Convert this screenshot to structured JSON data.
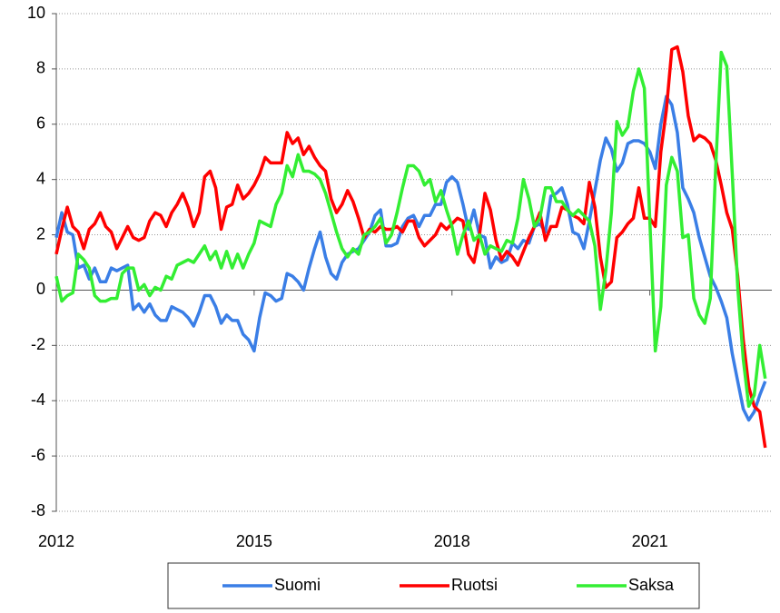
{
  "chart_data": {
    "type": "line",
    "x": [
      2012,
      2012.083,
      2012.167,
      2012.25,
      2012.333,
      2012.417,
      2012.5,
      2012.583,
      2012.667,
      2012.75,
      2012.833,
      2012.917,
      2013,
      2013.083,
      2013.167,
      2013.25,
      2013.333,
      2013.417,
      2013.5,
      2013.583,
      2013.667,
      2013.75,
      2013.833,
      2013.917,
      2014,
      2014.083,
      2014.167,
      2014.25,
      2014.333,
      2014.417,
      2014.5,
      2014.583,
      2014.667,
      2014.75,
      2014.833,
      2014.917,
      2015,
      2015.083,
      2015.167,
      2015.25,
      2015.333,
      2015.417,
      2015.5,
      2015.583,
      2015.667,
      2015.75,
      2015.833,
      2015.917,
      2016,
      2016.083,
      2016.167,
      2016.25,
      2016.333,
      2016.417,
      2016.5,
      2016.583,
      2016.667,
      2016.75,
      2016.833,
      2016.917,
      2017,
      2017.083,
      2017.167,
      2017.25,
      2017.333,
      2017.417,
      2017.5,
      2017.583,
      2017.667,
      2017.75,
      2017.833,
      2017.917,
      2018,
      2018.083,
      2018.167,
      2018.25,
      2018.333,
      2018.417,
      2018.5,
      2018.583,
      2018.667,
      2018.75,
      2018.833,
      2018.917,
      2019,
      2019.083,
      2019.167,
      2019.25,
      2019.333,
      2019.417,
      2019.5,
      2019.583,
      2019.667,
      2019.75,
      2019.833,
      2019.917,
      2020,
      2020.083,
      2020.167,
      2020.25,
      2020.333,
      2020.417,
      2020.5,
      2020.583,
      2020.667,
      2020.75,
      2020.833,
      2020.917,
      2021,
      2021.083,
      2021.167,
      2021.25,
      2021.333,
      2021.417,
      2021.5,
      2021.583,
      2021.667,
      2021.75,
      2021.833,
      2021.917,
      2022,
      2022.083,
      2022.167,
      2022.25,
      2022.333,
      2022.417,
      2022.5,
      2022.583,
      2022.667,
      2022.75
    ],
    "series": [
      {
        "name": "Suomi",
        "color": "#3a7ee6",
        "values": [
          1.9,
          2.8,
          2.1,
          2.0,
          0.8,
          0.9,
          0.4,
          0.8,
          0.3,
          0.3,
          0.8,
          0.7,
          0.8,
          0.9,
          -0.7,
          -0.5,
          -0.8,
          -0.5,
          -0.9,
          -1.1,
          -1.1,
          -0.6,
          -0.7,
          -0.8,
          -1.0,
          -1.3,
          -0.8,
          -0.2,
          -0.2,
          -0.6,
          -1.2,
          -0.9,
          -1.1,
          -1.1,
          -1.6,
          -1.8,
          -2.2,
          -1.0,
          -0.1,
          -0.2,
          -0.4,
          -0.3,
          0.6,
          0.5,
          0.3,
          0.0,
          0.8,
          1.5,
          2.1,
          1.2,
          0.6,
          0.4,
          1.0,
          1.3,
          1.4,
          1.5,
          1.8,
          2.1,
          2.7,
          2.9,
          1.6,
          1.6,
          1.7,
          2.3,
          2.6,
          2.7,
          2.3,
          2.7,
          2.7,
          3.1,
          3.1,
          3.9,
          4.1,
          3.9,
          3.1,
          2.2,
          2.9,
          2.0,
          1.9,
          0.8,
          1.2,
          1.0,
          1.1,
          1.7,
          1.5,
          1.8,
          1.7,
          2.3,
          2.4,
          2.1,
          3.4,
          3.5,
          3.7,
          3.1,
          2.1,
          2.0,
          1.5,
          2.5,
          3.6,
          4.7,
          5.5,
          5.1,
          4.3,
          4.6,
          5.3,
          5.4,
          5.4,
          5.3,
          5.0,
          4.4,
          6.0,
          7.0,
          6.7,
          5.7,
          3.7,
          3.3,
          2.8,
          1.9,
          1.2,
          0.5,
          0.1,
          -0.4,
          -1.0,
          -2.3,
          -3.3,
          -4.3,
          -4.7,
          -4.4,
          -3.8,
          -3.3
        ]
      },
      {
        "name": "Ruotsi",
        "color": "#ff0000",
        "values": [
          1.3,
          2.2,
          3.0,
          2.3,
          2.1,
          1.5,
          2.2,
          2.4,
          2.8,
          2.3,
          2.1,
          1.5,
          1.9,
          2.3,
          1.9,
          1.8,
          1.9,
          2.5,
          2.8,
          2.7,
          2.3,
          2.8,
          3.1,
          3.5,
          3.0,
          2.3,
          2.8,
          4.1,
          4.3,
          3.7,
          2.2,
          3.0,
          3.1,
          3.8,
          3.3,
          3.5,
          3.8,
          4.2,
          4.8,
          4.6,
          4.6,
          4.6,
          5.7,
          5.3,
          5.5,
          4.9,
          5.2,
          4.8,
          4.5,
          4.3,
          3.3,
          2.8,
          3.1,
          3.6,
          3.2,
          2.6,
          1.9,
          2.2,
          2.1,
          2.3,
          2.2,
          2.2,
          2.3,
          2.1,
          2.5,
          2.5,
          1.9,
          1.6,
          1.8,
          2.0,
          2.4,
          2.2,
          2.4,
          2.6,
          2.5,
          1.3,
          1.0,
          2.0,
          3.5,
          2.9,
          1.8,
          1.1,
          1.4,
          1.2,
          0.9,
          1.4,
          1.9,
          2.3,
          2.8,
          1.8,
          2.3,
          2.3,
          3.0,
          2.9,
          2.7,
          2.6,
          2.4,
          3.9,
          3.0,
          1.2,
          0.1,
          0.3,
          1.9,
          2.1,
          2.4,
          2.6,
          3.7,
          2.6,
          2.6,
          2.3,
          5.0,
          6.5,
          8.7,
          8.8,
          7.9,
          6.3,
          5.4,
          5.6,
          5.5,
          5.3,
          4.7,
          3.8,
          2.8,
          2.2,
          0.5,
          -1.8,
          -3.5,
          -4.2,
          -4.4,
          -5.7
        ]
      },
      {
        "name": "Saksa",
        "color": "#33ee33",
        "values": [
          0.5,
          -0.4,
          -0.2,
          -0.1,
          1.3,
          1.1,
          0.8,
          -0.2,
          -0.4,
          -0.4,
          -0.3,
          -0.3,
          0.6,
          0.8,
          0.8,
          0.0,
          0.2,
          -0.2,
          0.1,
          0.0,
          0.5,
          0.4,
          0.9,
          1.0,
          1.1,
          1.0,
          1.3,
          1.6,
          1.1,
          1.4,
          0.8,
          1.4,
          0.8,
          1.3,
          0.8,
          1.3,
          1.7,
          2.5,
          2.4,
          2.3,
          3.1,
          3.5,
          4.5,
          4.1,
          4.9,
          4.3,
          4.3,
          4.2,
          4.0,
          3.5,
          2.8,
          2.1,
          1.5,
          1.2,
          1.5,
          1.3,
          2.0,
          2.1,
          2.3,
          2.6,
          1.7,
          2.0,
          2.8,
          3.7,
          4.5,
          4.5,
          4.3,
          3.8,
          4.0,
          3.2,
          3.6,
          2.9,
          2.3,
          1.3,
          2.0,
          2.5,
          1.8,
          2.0,
          1.3,
          1.6,
          1.5,
          1.4,
          1.8,
          1.7,
          2.6,
          4.0,
          3.3,
          2.3,
          2.6,
          3.7,
          3.7,
          3.2,
          3.2,
          2.9,
          2.7,
          2.9,
          2.7,
          2.5,
          1.6,
          -0.7,
          0.7,
          2.8,
          6.1,
          5.6,
          5.9,
          7.2,
          8.0,
          7.3,
          2.5,
          -2.2,
          -0.6,
          3.8,
          4.8,
          4.3,
          1.9,
          2.0,
          -0.3,
          -0.9,
          -1.2,
          -0.3,
          4.5,
          8.6,
          8.1,
          4.2,
          0.1,
          -2.5,
          -4.2,
          -3.8,
          -2.0,
          -3.2
        ]
      }
    ],
    "xlim": [
      2012,
      2022.85
    ],
    "xticks": [
      2012,
      2015,
      2018,
      2021
    ],
    "ylim": [
      -8,
      10
    ],
    "yticks": [
      -8,
      -6,
      -4,
      -2,
      0,
      2,
      4,
      6,
      8,
      10
    ],
    "grid": true,
    "legend": "bottom"
  }
}
